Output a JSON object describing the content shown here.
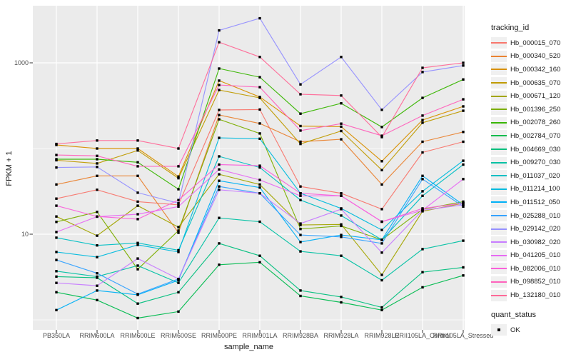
{
  "chart_data": {
    "type": "line",
    "title": "",
    "xlabel": "sample_name",
    "ylabel": "FPKM + 1",
    "y_scale": "log10",
    "ylim": [
      0.75,
      4700
    ],
    "grid": true,
    "legend_position": "right",
    "panel_bg": "#EBEBEB",
    "grid_color": "#FFFFFF",
    "point_color": "#000000",
    "axis_text_color": "#4d4d4d",
    "y_ticks": [
      {
        "label": "1000",
        "value": 1000
      },
      {
        "label": "10",
        "value": 10
      }
    ],
    "y_gridlines_major": [
      10,
      1000
    ],
    "y_gridlines_minor": [
      1,
      100
    ],
    "categories": [
      "PB350LA",
      "RRIM600LA",
      "RRIM600LE",
      "RRIM600SE",
      "RRIM600PE",
      "RRIM901LA",
      "RRIM928BA",
      "RRIM928LA",
      "RRIM928LE",
      "RRII105LA_Control",
      "RRII105LA_Stressed"
    ],
    "legend": {
      "color_title": "tracking_id",
      "shape_title": "quant_status",
      "shape_items": [
        {
          "label": "OK"
        }
      ]
    },
    "series": [
      {
        "name": "Hb_000015_070",
        "color": "#F8766D",
        "values": [
          26,
          33,
          24,
          22,
          282,
          285,
          36,
          30,
          19.6,
          90,
          120
        ]
      },
      {
        "name": "Hb_000340_520",
        "color": "#EA8331",
        "values": [
          38,
          48,
          48,
          10.4,
          246,
          196,
          120,
          128,
          38,
          120,
          156
        ]
      },
      {
        "name": "Hb_000342_160",
        "color": "#D89000",
        "values": [
          110,
          100,
          100,
          47,
          620,
          400,
          183,
          180,
          71,
          215,
          310
        ]
      },
      {
        "name": "Hb_000635_070",
        "color": "#C09B00",
        "values": [
          73,
          67,
          95,
          45,
          481,
          390,
          113,
          160,
          56,
          200,
          276
        ]
      },
      {
        "name": "Hb_000671_120",
        "color": "#A3A500",
        "values": [
          16.1,
          9.6,
          21.5,
          12.1,
          50,
          38,
          12.8,
          13,
          3.35,
          18.5,
          23
        ]
      },
      {
        "name": "Hb_001396_250",
        "color": "#7CAE00",
        "values": [
          13.9,
          18.2,
          3.9,
          11,
          219,
          150,
          11.5,
          12.5,
          8.6,
          19.5,
          24
        ]
      },
      {
        "name": "Hb_002078_260",
        "color": "#39B600",
        "values": [
          75,
          75,
          69,
          33.5,
          857,
          680,
          255,
          337,
          178,
          390,
          640
        ]
      },
      {
        "name": "Hb_002784_070",
        "color": "#00BB4E",
        "values": [
          2.1,
          1.7,
          1.05,
          1.25,
          4.4,
          4.7,
          1.9,
          1.6,
          1.3,
          2.4,
          3.3
        ]
      },
      {
        "name": "Hb_004669_030",
        "color": "#00BF7D",
        "values": [
          3.2,
          3.1,
          1.55,
          2.1,
          7.8,
          5.6,
          2.2,
          1.85,
          1.4,
          3.6,
          4.1
        ]
      },
      {
        "name": "Hb_009270_030",
        "color": "#00C1A3",
        "values": [
          3.7,
          3.2,
          4.3,
          2.7,
          15.5,
          14,
          6.3,
          5.6,
          2.9,
          6.7,
          8.4
        ]
      },
      {
        "name": "Hb_011037_020",
        "color": "#00BFC4",
        "values": [
          9.1,
          7.4,
          7.9,
          6.5,
          81,
          60,
          25,
          16.5,
          8.6,
          28,
          65
        ]
      },
      {
        "name": "Hb_011214_100",
        "color": "#00BADE",
        "values": [
          6.2,
          5.4,
          7.5,
          6.2,
          133,
          130,
          30,
          20,
          11.2,
          31.7,
          72
        ]
      },
      {
        "name": "Hb_011512_050",
        "color": "#00B0F6",
        "values": [
          1.3,
          2.2,
          1.96,
          2.9,
          42,
          35,
          8.1,
          9.8,
          8.6,
          48,
          22
        ]
      },
      {
        "name": "Hb_025288_010",
        "color": "#35A2FF",
        "values": [
          5.0,
          3.5,
          2.0,
          3.0,
          36,
          30,
          9.8,
          9.3,
          7.8,
          44,
          21
        ]
      },
      {
        "name": "Hb_029142_020",
        "color": "#9590FF",
        "values": [
          60,
          61,
          30.5,
          23,
          2390,
          3310,
          560,
          1170,
          283,
          780,
          930
        ]
      },
      {
        "name": "Hb_030982_020",
        "color": "#C77CFF",
        "values": [
          2.7,
          2.5,
          5.2,
          3.0,
          33,
          30,
          13.3,
          19.6,
          6.1,
          19,
          22
        ]
      },
      {
        "name": "Hb_041205_010",
        "color": "#E76BF3",
        "values": [
          10.6,
          16,
          17.1,
          21,
          57,
          43,
          28,
          28,
          14,
          19,
          44
        ]
      },
      {
        "name": "Hb_082006_010",
        "color": "#FA62DB",
        "values": [
          21.5,
          16.1,
          15,
          25,
          65,
          63,
          30,
          28,
          14,
          20,
          23
        ]
      },
      {
        "name": "Hb_098852_010",
        "color": "#FF62BC",
        "values": [
          84,
          82,
          62,
          62,
          551,
          520,
          162,
          195,
          141,
          242,
          375
        ]
      },
      {
        "name": "Hb_132180_010",
        "color": "#FF6A98",
        "values": [
          113,
          124,
          124,
          100,
          1740,
          1170,
          430,
          415,
          136,
          875,
          1000
        ]
      }
    ]
  }
}
